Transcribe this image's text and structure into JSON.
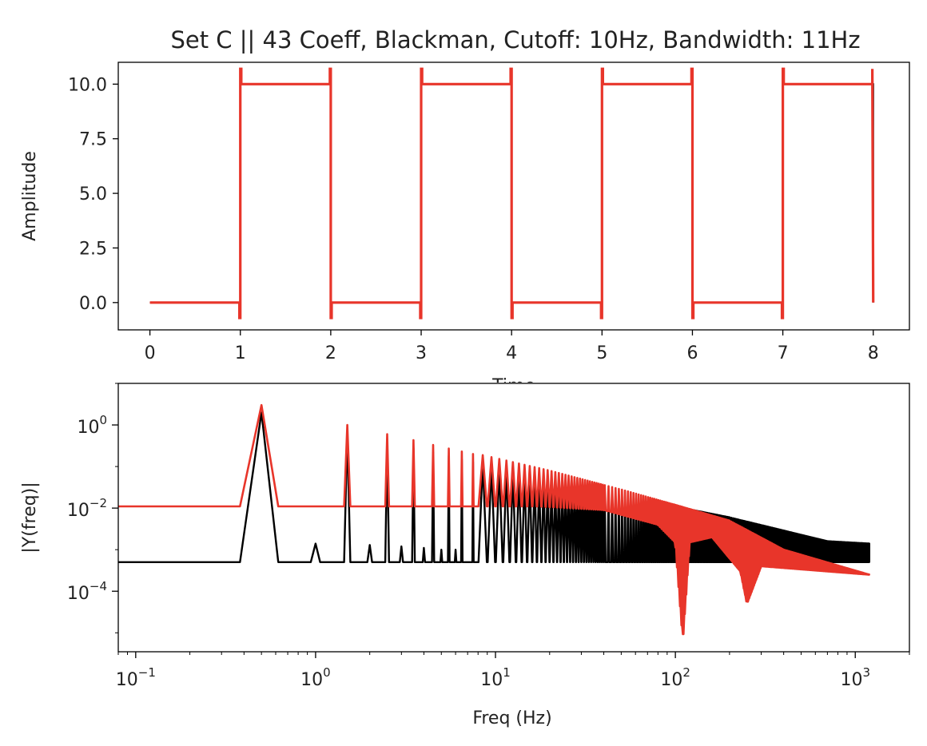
{
  "chart_data": [
    {
      "type": "line",
      "title": "Set C || 43 Coeff, Blackman, Cutoff: 10Hz, Bandwidth: 11Hz",
      "xlabel": "Time",
      "ylabel": "Amplitude",
      "xlim": [
        -0.35,
        8.4
      ],
      "ylim": [
        -1.25,
        11.0
      ],
      "xticks": [
        0,
        1,
        2,
        3,
        4,
        5,
        6,
        7,
        8
      ],
      "xtick_labels": [
        "0",
        "1",
        "2",
        "3",
        "4",
        "5",
        "6",
        "7",
        "8"
      ],
      "yticks": [
        0.0,
        2.5,
        5.0,
        7.5,
        10.0
      ],
      "ytick_labels": [
        "0.0",
        "2.5",
        "5.0",
        "7.5",
        "10.0"
      ],
      "grid": false,
      "series": [
        {
          "color": "#000000",
          "x": [
            0,
            1,
            1,
            2,
            2,
            3,
            3,
            4,
            4,
            5,
            5,
            6,
            6,
            7,
            7,
            8,
            8
          ],
          "y": [
            0,
            0,
            10,
            10,
            0,
            0,
            10,
            10,
            0,
            0,
            10,
            10,
            0,
            0,
            10,
            10,
            0
          ]
        },
        {
          "color": "#e8352a",
          "x": [
            0,
            0.99,
            0.99,
            1.0,
            1.0,
            1.01,
            1.01,
            1.99,
            1.99,
            2.0,
            2.0,
            2.01,
            2.01,
            2.99,
            2.99,
            3.0,
            3.0,
            3.01,
            3.01,
            3.99,
            3.99,
            4.0,
            4.0,
            4.01,
            4.01,
            4.99,
            4.99,
            5.0,
            5.0,
            5.01,
            5.01,
            5.99,
            5.99,
            6.0,
            6.0,
            6.01,
            6.01,
            6.99,
            6.99,
            7.0,
            7.0,
            7.01,
            7.01,
            7.99,
            7.99,
            8.0
          ],
          "y": [
            0,
            0,
            -0.7,
            -0.7,
            10.7,
            10.7,
            10,
            10,
            10.7,
            10.7,
            -0.7,
            -0.7,
            0,
            0,
            -0.7,
            -0.7,
            10.7,
            10.7,
            10,
            10,
            10.7,
            10.7,
            -0.7,
            -0.7,
            0,
            0,
            -0.7,
            -0.7,
            10.7,
            10.7,
            10,
            10,
            10.7,
            10.7,
            -0.7,
            -0.7,
            0,
            0,
            -0.7,
            -0.7,
            10.7,
            10.7,
            10,
            10,
            10.7,
            0
          ]
        }
      ]
    },
    {
      "type": "line",
      "xlabel": "Freq (Hz)",
      "ylabel": "|Y(freq)|",
      "xscale": "log",
      "yscale": "log",
      "xlim": [
        0.08,
        2000
      ],
      "ylim": [
        3.5e-06,
        10
      ],
      "xticks": [
        0.1,
        1,
        10,
        100,
        1000
      ],
      "xtick_labels": [
        {
          "base": "10",
          "exp": "−1"
        },
        {
          "base": "10",
          "exp": "0"
        },
        {
          "base": "10",
          "exp": "1"
        },
        {
          "base": "10",
          "exp": "2"
        },
        {
          "base": "10",
          "exp": "3"
        }
      ],
      "yticks": [
        1,
        0.01,
        0.0001
      ],
      "ytick_labels": [
        {
          "base": "10",
          "exp": "0"
        },
        {
          "base": "10",
          "exp": "−2"
        },
        {
          "base": "10",
          "exp": "−4"
        }
      ],
      "grid": false,
      "series": [
        {
          "color": "#000000",
          "description_points": "spectrum of unfiltered square wave: odd-harmonic peaks decaying ~1/f over a noise floor of ~5e-4",
          "floor": 0.0005,
          "peak_freqs": [
            0.5,
            1.5,
            2.5,
            3.5,
            4.5,
            5.5,
            6.5,
            7.5
          ],
          "peak_values": [
            2.0,
            0.67,
            0.4,
            0.28,
            0.22,
            0.18,
            0.15,
            0.13
          ],
          "small_peak_freqs": [
            1.0,
            2.0,
            3.0,
            4.0,
            5.0,
            6.0
          ],
          "small_peak_values": [
            0.0014,
            0.0013,
            0.0012,
            0.0011,
            0.001,
            0.001
          ],
          "envelope_top": [
            [
              8,
              0.13
            ],
            [
              50,
              0.02
            ],
            [
              200,
              0.006
            ],
            [
              700,
              0.0016
            ],
            [
              1200,
              0.0014
            ]
          ],
          "band_range": [
            8,
            1200
          ]
        },
        {
          "color": "#e8352a",
          "description_points": "spectrum of filtered signal: harmonic peaks over a floor of ~1e-2, rolling off above ~20 Hz with notches near 110 Hz and 250 Hz",
          "floor": 0.011,
          "peak_freqs": [
            0.5,
            1.5,
            2.5,
            3.5,
            4.5,
            5.5,
            6.5,
            7.5
          ],
          "peak_values": [
            3.0,
            1.0,
            0.6,
            0.43,
            0.33,
            0.27,
            0.23,
            0.2
          ],
          "envelope_top": [
            [
              8,
              0.2
            ],
            [
              20,
              0.08
            ],
            [
              50,
              0.028
            ],
            [
              100,
              0.012
            ],
            [
              200,
              0.005
            ],
            [
              400,
              0.001
            ],
            [
              1200,
              0.00025
            ]
          ],
          "envelope_bottom": [
            [
              17,
              0.011
            ],
            [
              40,
              0.009
            ],
            [
              80,
              0.004
            ],
            [
              100,
              0.0015
            ],
            [
              110,
              7e-06
            ],
            [
              120,
              0.0015
            ],
            [
              160,
              0.002
            ],
            [
              230,
              0.0003
            ],
            [
              250,
              5e-05
            ],
            [
              300,
              0.0004
            ],
            [
              1200,
              0.00025
            ]
          ]
        }
      ]
    }
  ]
}
